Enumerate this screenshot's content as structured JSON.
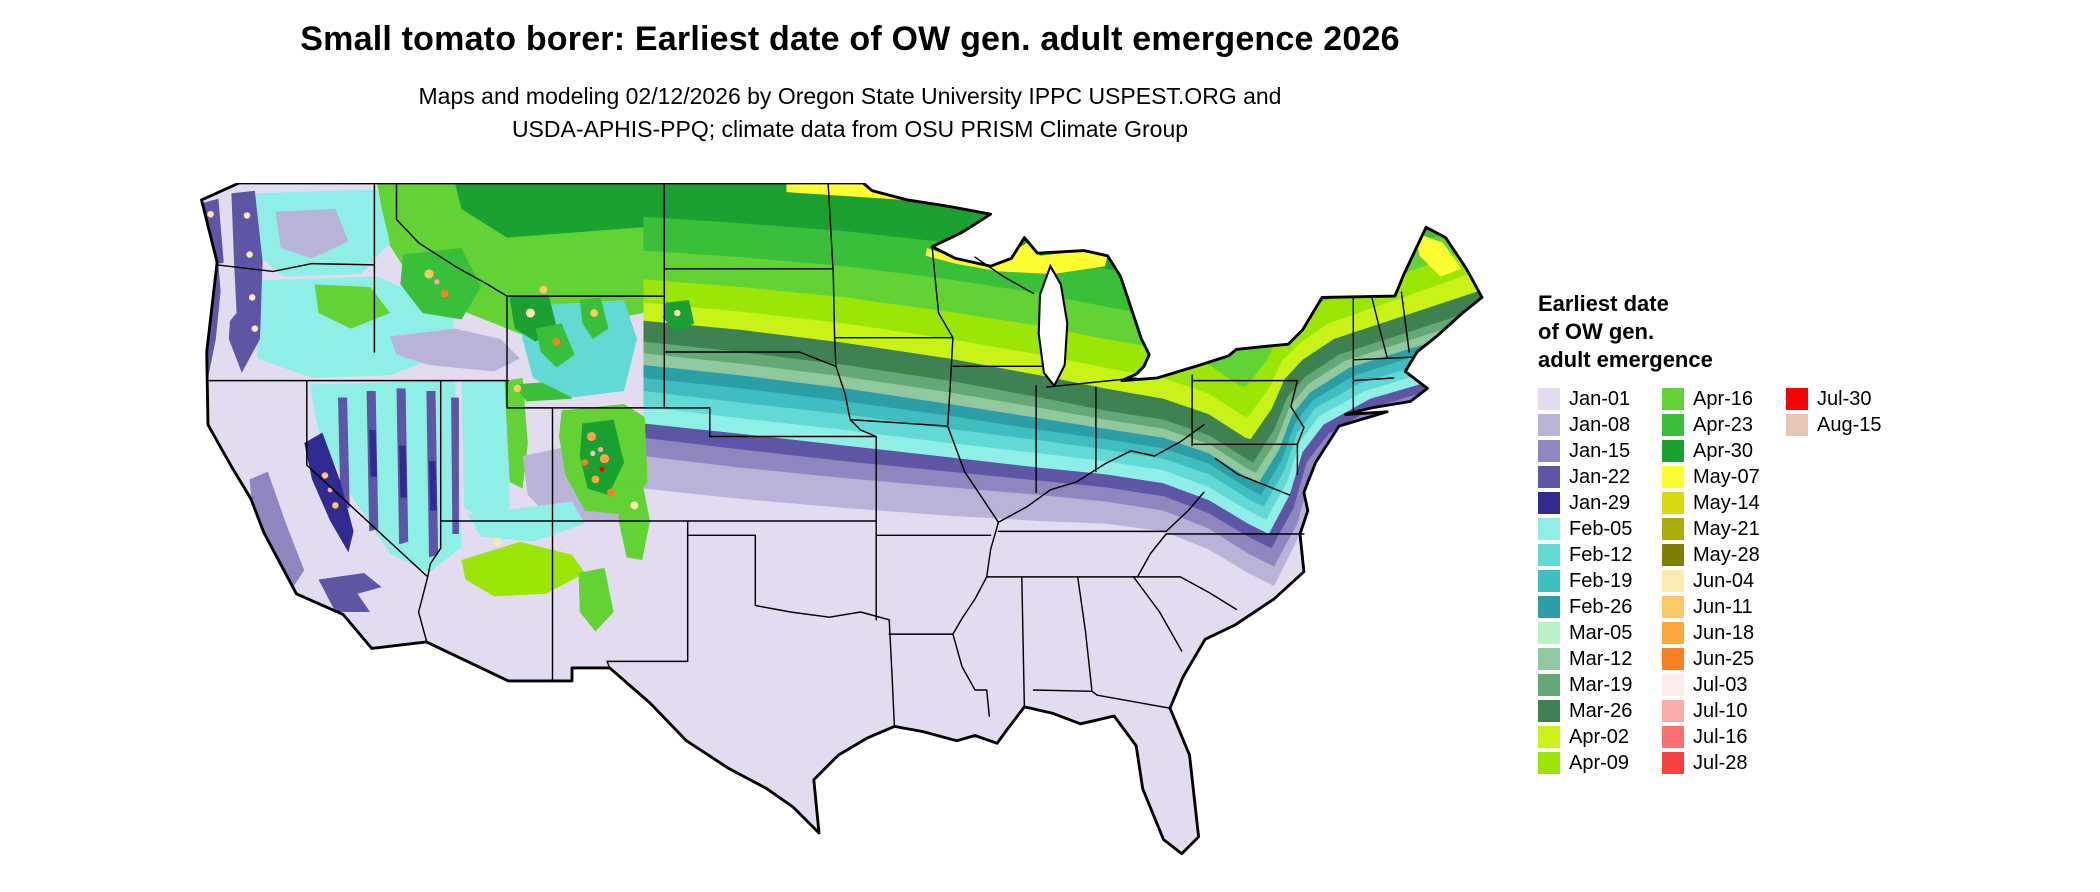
{
  "header": {
    "title": "Small tomato borer: Earliest date of OW gen. adult emergence 2026",
    "subtitle": {
      "line1": "Maps and modeling 02/12/2026 by Oregon State University IPPC USPEST.ORG and",
      "line2": "USDA-APHIS-PPQ; climate data from OSU PRISM Climate Group"
    }
  },
  "legend": {
    "title_lines": [
      "Earliest date",
      "of OW gen.",
      "adult emergence"
    ],
    "columns": [
      [
        {
          "label": "Jan-01",
          "color": "#e3dcf0"
        },
        {
          "label": "Jan-08",
          "color": "#b9b3d8"
        },
        {
          "label": "Jan-15",
          "color": "#8f86c0"
        },
        {
          "label": "Jan-22",
          "color": "#5e55a5"
        },
        {
          "label": "Jan-29",
          "color": "#312b90"
        },
        {
          "label": "Feb-05",
          "color": "#8fefe7"
        },
        {
          "label": "Feb-12",
          "color": "#62d9d4"
        },
        {
          "label": "Feb-19",
          "color": "#41bdbf"
        },
        {
          "label": "Feb-26",
          "color": "#2b9fa8"
        },
        {
          "label": "Mar-05",
          "color": "#baf2c5"
        },
        {
          "label": "Mar-12",
          "color": "#91c99e"
        },
        {
          "label": "Mar-19",
          "color": "#64a876"
        },
        {
          "label": "Mar-26",
          "color": "#3e8253"
        },
        {
          "label": "Apr-02",
          "color": "#c9f318"
        },
        {
          "label": "Apr-09",
          "color": "#9ce607"
        }
      ],
      [
        {
          "label": "Apr-16",
          "color": "#62d234"
        },
        {
          "label": "Apr-23",
          "color": "#39bf39"
        },
        {
          "label": "Apr-30",
          "color": "#1ba132"
        },
        {
          "label": "May-07",
          "color": "#fdfd32"
        },
        {
          "label": "May-14",
          "color": "#d9d913"
        },
        {
          "label": "May-21",
          "color": "#adad0a"
        },
        {
          "label": "May-28",
          "color": "#7f7f04"
        },
        {
          "label": "Jun-04",
          "color": "#fdeab0"
        },
        {
          "label": "Jun-11",
          "color": "#fdc968"
        },
        {
          "label": "Jun-18",
          "color": "#fda63e"
        },
        {
          "label": "Jun-25",
          "color": "#fa8021"
        },
        {
          "label": "Jul-03",
          "color": "#fdecec"
        },
        {
          "label": "Jul-10",
          "color": "#fdaaaa"
        },
        {
          "label": "Jul-16",
          "color": "#fb6f6f"
        },
        {
          "label": "Jul-28",
          "color": "#f74040"
        }
      ],
      [
        {
          "label": "Jul-30",
          "color": "#fe0000"
        },
        {
          "label": "Aug-15",
          "color": "#e6c6b9"
        }
      ]
    ]
  },
  "map": {
    "outline_color": "#000000",
    "water_color": "#ffffff"
  }
}
